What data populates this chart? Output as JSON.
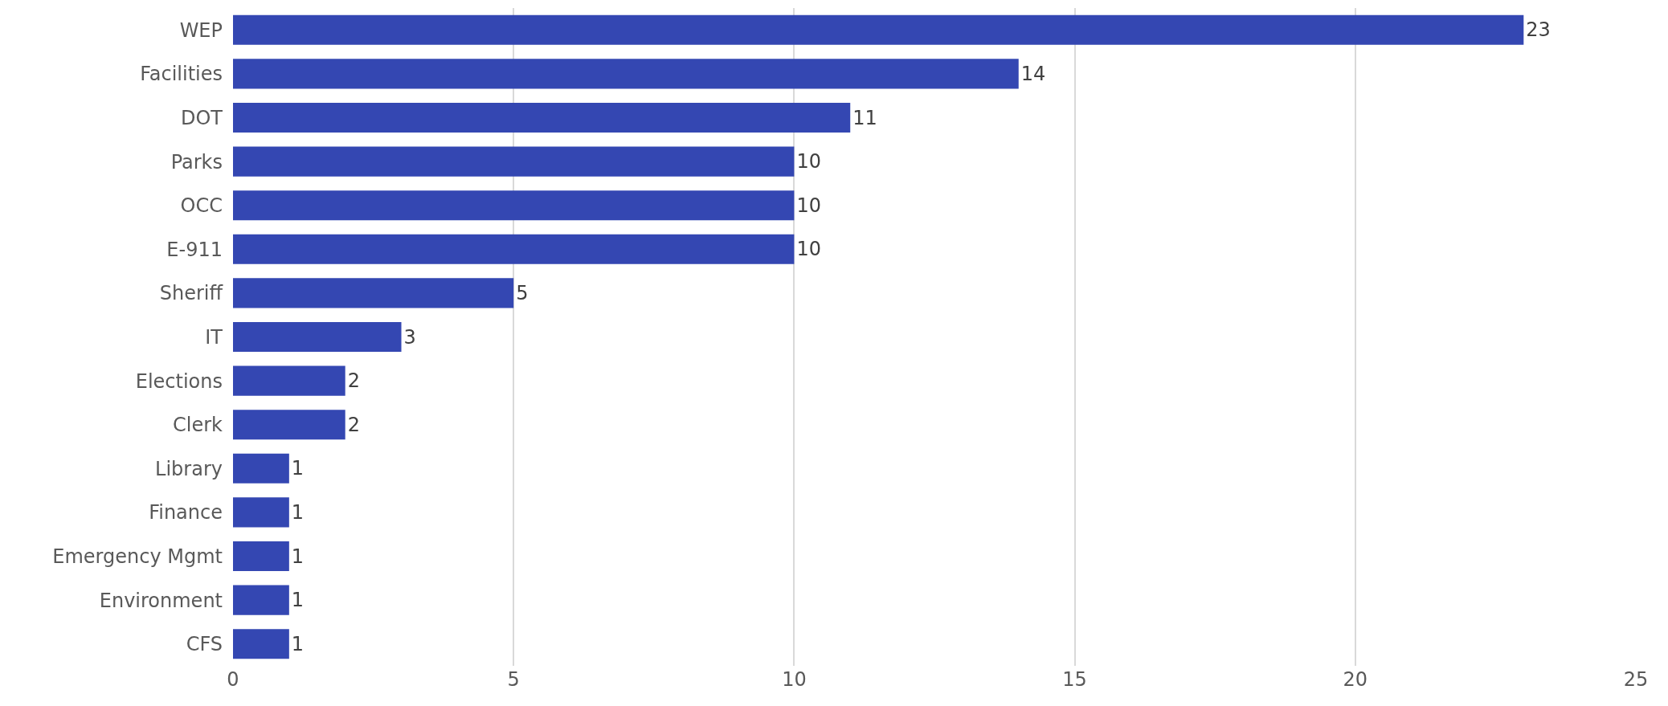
{
  "chart_data": {
    "type": "bar",
    "orientation": "horizontal",
    "categories": [
      "WEP",
      "Facilities",
      "DOT",
      "Parks",
      "OCC",
      "E-911",
      "Sheriff",
      "IT",
      "Elections",
      "Clerk",
      "Library",
      "Finance",
      "Emergency Mgmt",
      "Environment",
      "CFS"
    ],
    "values": [
      23,
      14,
      11,
      10,
      10,
      10,
      5,
      3,
      2,
      2,
      1,
      1,
      1,
      1,
      1
    ],
    "color": "#3447b2",
    "xlim": [
      0,
      25
    ],
    "xticks": [
      0,
      5,
      10,
      15,
      20,
      25
    ],
    "grid": "x",
    "data_labels": true
  }
}
